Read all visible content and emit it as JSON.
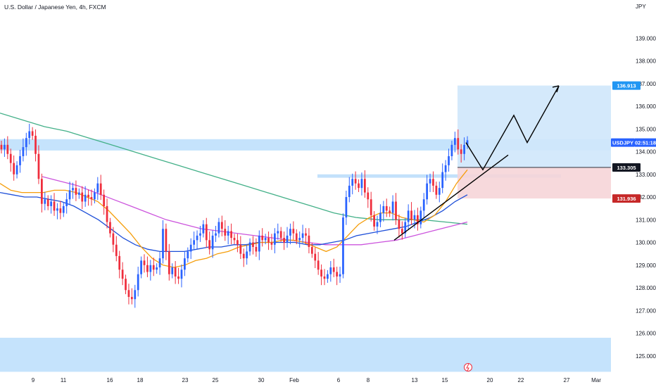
{
  "chart_data": {
    "type": "candlestick",
    "title": "U.S. Dollar / Japanese Yen, 4h, FXCM",
    "currency_label": "JPY",
    "ylim": [
      124.25,
      140.0
    ],
    "y_ticks": [
      "139.000",
      "138.000",
      "137.000",
      "136.000",
      "135.000",
      "134.000",
      "133.000",
      "132.000",
      "131.000",
      "130.000",
      "129.000",
      "128.000",
      "127.000",
      "126.000",
      "125.000"
    ],
    "y_tick_values": [
      139,
      138,
      137,
      136,
      135,
      134,
      133,
      132,
      131,
      130,
      129,
      128,
      127,
      126,
      125
    ],
    "x_ticks": [
      "9",
      "11",
      "16",
      "18",
      "23",
      "25",
      "30",
      "Feb",
      "6",
      "8",
      "13",
      "15",
      "20",
      "22",
      "27",
      "Mar"
    ],
    "grid": false,
    "colors": {
      "up": "#2962ff",
      "down": "#ef2d3c",
      "ma_fast": "#f59e0b",
      "ma_mid": "#1e4fd8",
      "ma_slow": "#cc55dd",
      "ma_long": "#43b088",
      "zone": "#bbdefb",
      "target_zone": "#cfe7fb",
      "stop_zone": "#f6d5d8"
    },
    "price_tags": [
      {
        "label": "136.913",
        "value": 136.913,
        "style": "target"
      },
      {
        "symbol": "USDJPY",
        "countdown": "02:51:18",
        "value": 134.4,
        "style": "symbol"
      },
      {
        "label": "133.305",
        "value": 133.305,
        "style": "entry"
      },
      {
        "label": "131.936",
        "value": 131.936,
        "style": "stop"
      }
    ],
    "series": [
      {
        "name": "",
        "kind": "candles",
        "close": [
          134.1,
          134.3,
          133.9,
          133.5,
          133.0,
          133.4,
          133.8,
          134.2,
          134.6,
          134.9,
          134.7,
          133.9,
          132.8,
          131.7,
          131.9,
          131.6,
          131.8,
          131.4,
          131.5,
          131.3,
          131.6,
          131.9,
          132.3,
          132.4,
          132.1,
          132.2,
          131.8,
          132.1,
          132.0,
          131.9,
          132.2,
          132.6,
          132.1,
          131.6,
          130.9,
          130.4,
          129.9,
          129.4,
          128.8,
          128.4,
          127.9,
          127.6,
          127.5,
          127.9,
          128.6,
          129.2,
          129.0,
          128.7,
          129.0,
          128.8,
          128.9,
          129.3,
          130.6,
          129.6,
          128.6,
          128.9,
          128.5,
          128.4,
          128.8,
          129.3,
          129.6,
          129.9,
          130.1,
          130.3,
          130.4,
          130.8,
          130.1,
          129.7,
          130.3,
          130.4,
          130.9,
          130.6,
          130.3,
          130.5,
          130.2,
          130.1,
          129.9,
          129.5,
          129.3,
          129.6,
          130.0,
          129.8,
          129.6,
          130.3,
          130.1,
          130.2,
          130.0,
          129.9,
          130.4,
          130.5,
          130.2,
          130.0,
          130.3,
          130.6,
          130.4,
          130.1,
          130.2,
          130.4,
          130.3,
          129.8,
          129.5,
          129.2,
          128.8,
          128.5,
          128.4,
          128.6,
          128.9,
          128.7,
          128.5,
          128.6,
          131.1,
          132.0,
          132.5,
          132.8,
          132.6,
          132.4,
          132.8,
          132.2,
          131.9,
          131.2,
          130.7,
          130.9,
          131.3,
          131.6,
          131.4,
          131.3,
          131.8,
          131.0,
          130.6,
          130.4,
          130.9,
          131.4,
          131.0,
          131.2,
          130.8,
          131.4,
          131.9,
          132.6,
          132.8,
          132.5,
          132.1,
          132.4,
          133.1,
          133.4,
          133.8,
          134.3,
          134.6,
          134.1,
          133.9,
          134.3,
          134.5
        ]
      },
      {
        "name": "",
        "kind": "moving-average",
        "values": [
          132.6,
          132.3,
          132.2,
          132.2,
          132.2,
          132.3,
          132.3,
          132.2,
          132.0,
          131.8,
          131.4,
          130.9,
          130.4,
          129.8,
          129.3,
          129.0,
          128.9,
          129.0,
          129.2,
          129.3,
          129.5,
          129.6,
          129.8,
          129.9,
          130.0,
          130.0,
          130.1,
          130.1,
          130.0,
          129.8,
          129.6,
          129.8,
          130.3,
          130.8,
          131.1,
          131.3,
          131.3,
          131.1,
          131.0,
          130.9,
          131.2,
          131.8,
          132.6,
          133.2
        ]
      },
      {
        "name": "",
        "kind": "moving-average",
        "values": [
          132.2,
          132.1,
          132.0,
          132.0,
          131.9,
          131.8,
          131.6,
          131.3,
          131.0,
          130.6,
          130.2,
          129.9,
          129.7,
          129.6,
          129.6,
          129.6,
          129.7,
          129.8,
          129.8,
          129.9,
          129.9,
          130.0,
          130.0,
          130.0,
          130.0,
          129.9,
          129.9,
          130.0,
          130.1,
          130.3,
          130.4,
          130.5,
          130.6,
          130.7,
          130.9,
          131.1,
          131.4,
          131.8,
          132.1
        ]
      },
      {
        "name": "",
        "kind": "moving-average",
        "values": [
          132.9,
          132.7,
          132.5,
          132.2,
          131.9,
          131.6,
          131.3,
          131.0,
          130.8,
          130.6,
          130.5,
          130.4,
          130.3,
          130.2,
          130.1,
          130.0,
          129.9,
          129.9,
          129.9,
          130.0,
          130.1,
          130.3,
          130.5,
          130.7,
          130.9
        ]
      },
      {
        "name": "",
        "kind": "moving-average",
        "values": [
          135.7,
          135.4,
          135.1,
          134.9,
          134.6,
          134.3,
          134.0,
          133.7,
          133.4,
          133.1,
          132.8,
          132.5,
          132.2,
          131.9,
          131.6,
          131.3,
          131.1,
          131.0,
          131.0,
          131.0,
          130.9,
          130.8
        ]
      }
    ],
    "annotations": {
      "horizontal_zones": [
        [
          134.05,
          134.55
        ],
        [
          132.85,
          133.0
        ],
        [
          124.3,
          125.8
        ]
      ],
      "target_box": [
        136.913,
        133.305
      ],
      "stop_box": [
        133.305,
        131.936
      ],
      "projection_path": [
        134.4,
        133.2,
        135.6,
        134.4,
        136.9
      ]
    }
  }
}
